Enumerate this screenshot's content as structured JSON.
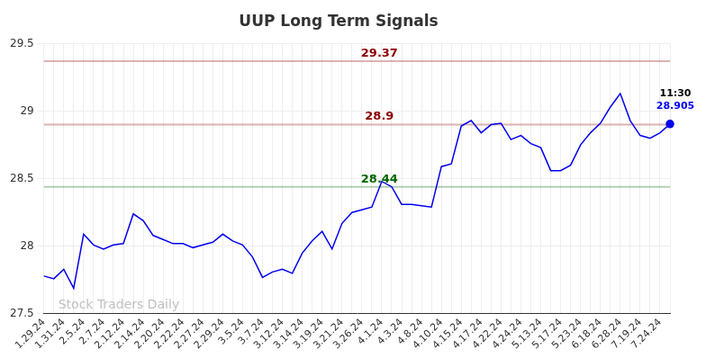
{
  "chart_data": {
    "type": "line",
    "title": "UUP Long Term Signals",
    "watermark": "Stock Traders Daily",
    "categories": [
      "1.29.24",
      null,
      "1.31.24",
      null,
      "2.5.24",
      null,
      "2.7.24",
      null,
      "2.12.24",
      null,
      "2.14.24",
      null,
      "2.20.24",
      null,
      "2.22.24",
      null,
      "2.27.24",
      null,
      "2.29.24",
      null,
      "3.5.24",
      null,
      "3.7.24",
      null,
      "3.12.24",
      null,
      "3.14.24",
      null,
      "3.19.24",
      null,
      "3.21.24",
      null,
      "3.26.24",
      null,
      "4.1.24",
      null,
      "4.3.24",
      null,
      "4.8.24",
      null,
      "4.10.24",
      null,
      "4.15.24",
      null,
      "4.17.24",
      null,
      "4.22.24",
      null,
      "4.24.24",
      null,
      "5.13.24",
      null,
      "5.17.24",
      null,
      "5.23.24",
      null,
      "6.18.24",
      null,
      "6.28.24",
      null,
      "7.19.24",
      null,
      "7.24.24",
      null
    ],
    "values": [
      27.78,
      27.76,
      27.83,
      27.69,
      28.09,
      28.01,
      27.98,
      28.01,
      28.02,
      28.24,
      28.19,
      28.08,
      28.05,
      28.02,
      28.02,
      27.99,
      28.01,
      28.03,
      28.09,
      28.04,
      28.01,
      27.92,
      27.77,
      27.81,
      27.83,
      27.8,
      27.95,
      28.04,
      28.11,
      27.98,
      28.17,
      28.25,
      28.27,
      28.29,
      28.48,
      28.44,
      28.31,
      28.31,
      28.3,
      28.29,
      28.59,
      28.61,
      28.89,
      28.93,
      28.84,
      28.9,
      28.91,
      28.79,
      28.82,
      28.76,
      28.73,
      28.56,
      28.56,
      28.6,
      28.75,
      28.84,
      28.91,
      29.03,
      29.13,
      28.93,
      28.82,
      28.8,
      28.84,
      28.905
    ],
    "color": "#0000ee",
    "ylim": [
      27.5,
      29.5
    ],
    "yticks": [
      27.5,
      28,
      28.5,
      29,
      29.5
    ],
    "grid": true,
    "signal_lines": [
      {
        "value": 29.37,
        "label": "29.37",
        "color": "#8b0000"
      },
      {
        "value": 28.9,
        "label": "28.9",
        "color": "#8b0000"
      },
      {
        "value": 28.44,
        "label": "28.44",
        "color": "#006400"
      }
    ],
    "last_point": {
      "time_label": "11:30",
      "value_label": "28.905"
    }
  }
}
